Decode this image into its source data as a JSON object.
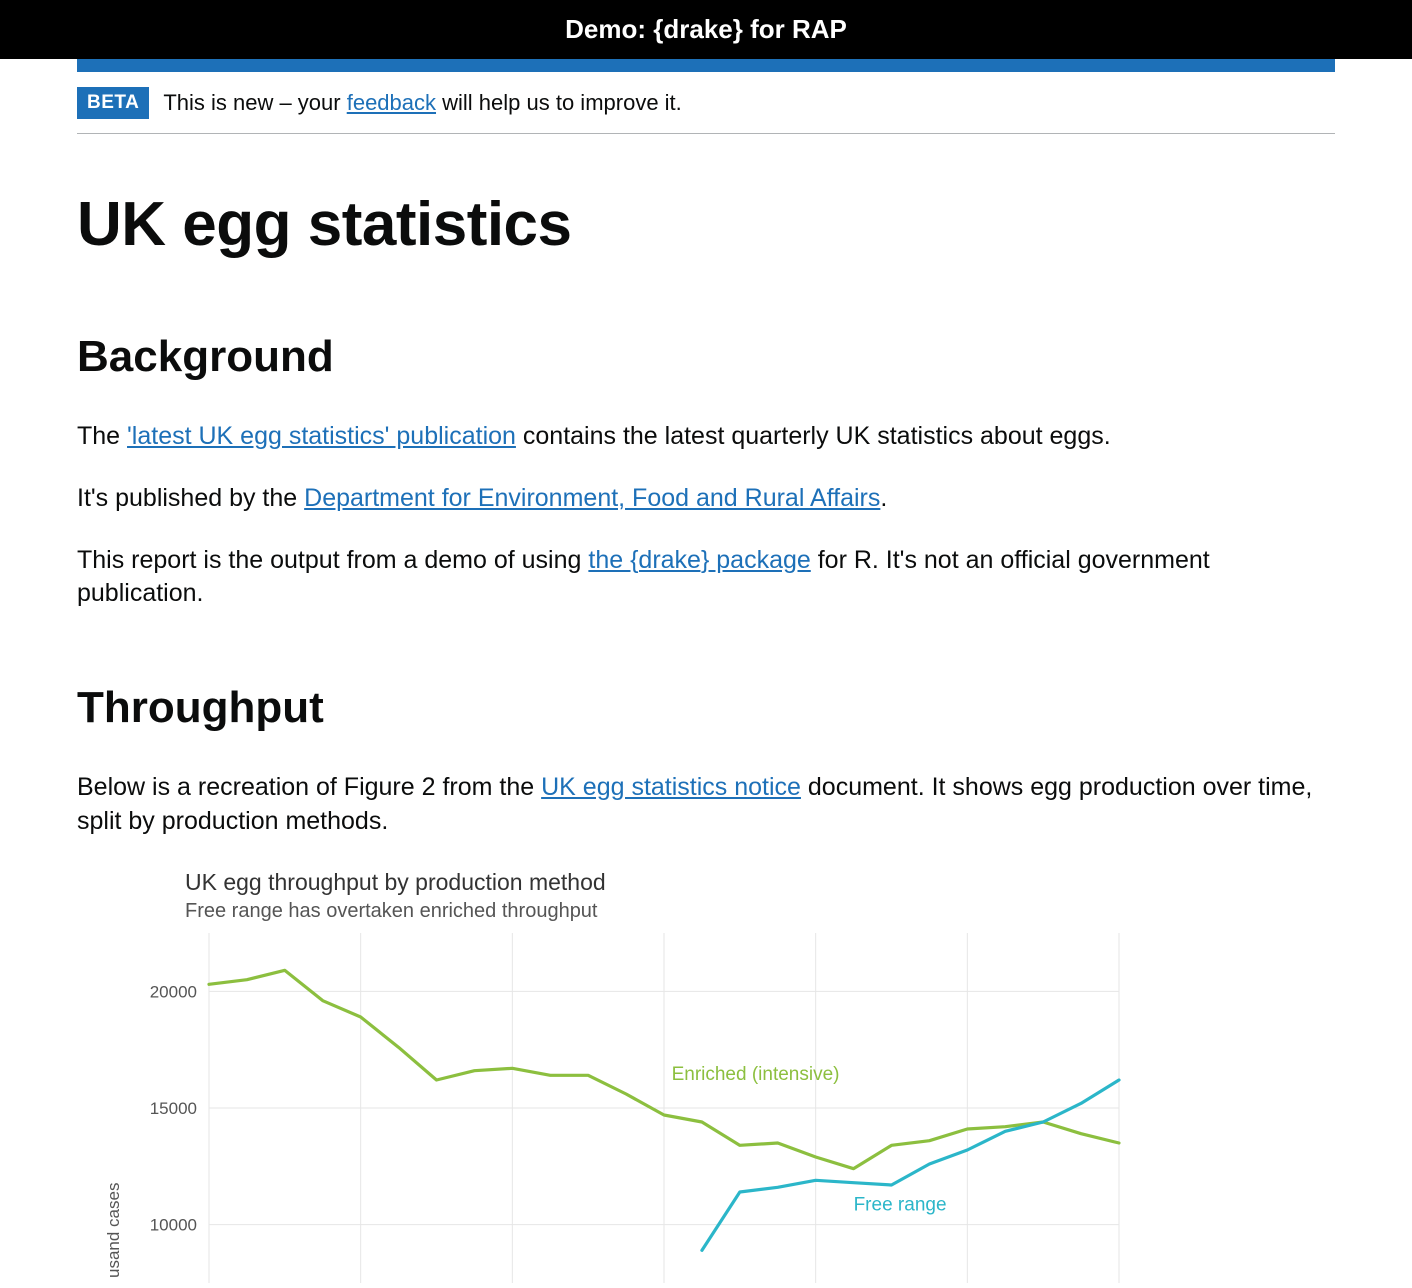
{
  "header": {
    "title": "Demo: {drake} for RAP"
  },
  "phase_banner": {
    "tag": "BETA",
    "text_before": "This is new – your ",
    "link_text": "feedback",
    "text_after": " will help us to improve it."
  },
  "page": {
    "title": "UK egg statistics",
    "sections": {
      "background": {
        "heading": "Background",
        "p1_before": "The ",
        "p1_link": "'latest UK egg statistics' publication",
        "p1_after": " contains the latest quarterly UK statistics about eggs.",
        "p2_before": "It's published by the ",
        "p2_link": "Department for Environment, Food and Rural Affairs",
        "p2_after": ".",
        "p3_before": "This report is the output from a demo of using ",
        "p3_link": "the {drake} package",
        "p3_after": " for R. It's not an official government publication."
      },
      "throughput": {
        "heading": "Throughput",
        "p1_before": "Below is a recreation of Figure 2 from the ",
        "p1_link": "UK egg statistics notice",
        "p1_after": " document. It shows egg production over time, split by production methods."
      }
    }
  },
  "chart": {
    "type": "line",
    "title": "UK egg throughput by production method",
    "subtitle": "Free range has overtaken enriched throughput",
    "y_label": "usand cases",
    "y_ticks": [
      10000,
      15000,
      20000
    ],
    "ylim": [
      7500,
      22500
    ],
    "x_domain": [
      0,
      24
    ],
    "x_gridlines": [
      0,
      4,
      8,
      12,
      16,
      20,
      24
    ],
    "background_color": "#ffffff",
    "grid_color": "#e6e6e6",
    "line_width": 3.2,
    "series": [
      {
        "name": "Enriched (intensive)",
        "label": "Enriched (intensive)",
        "color": "#8cbf3f",
        "label_pos_index": 12.2,
        "label_y": 16200,
        "values": [
          20300,
          20500,
          20900,
          19600,
          18900,
          17600,
          16200,
          16600,
          16700,
          16400,
          16400,
          15600,
          14700,
          14400,
          13400,
          13500,
          12900,
          12400,
          13400,
          13600,
          14100,
          14200,
          14400,
          13900,
          13500
        ]
      },
      {
        "name": "Free range",
        "label": "Free range",
        "color": "#2bb6c9",
        "label_pos_index": 17,
        "label_y": 10600,
        "values": [
          null,
          null,
          null,
          null,
          null,
          null,
          null,
          null,
          null,
          null,
          null,
          null,
          null,
          8900,
          11400,
          11600,
          11900,
          11800,
          11700,
          12600,
          13200,
          14000,
          14400,
          15200,
          16200
        ]
      }
    ]
  }
}
